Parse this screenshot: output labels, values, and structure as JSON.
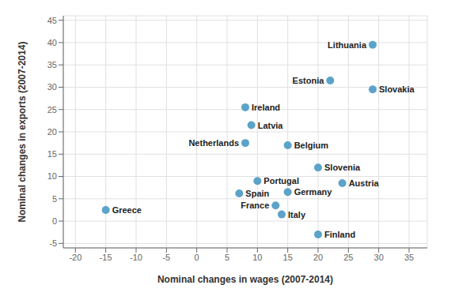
{
  "chart_data": {
    "type": "scatter",
    "xlabel": "Nominal changes in wages (2007-2014)",
    "ylabel": "Nominal changes in exports (2007-2014)",
    "annotations": [
      "Lithuania",
      "Estonia",
      "Slovakia",
      "Ireland",
      "Latvia",
      "Netherlands",
      "Belgium",
      "Slovenia",
      "Portugal",
      "Austria",
      "Spain",
      "Germany",
      "France",
      "Italy",
      "Finland",
      "Greece"
    ],
    "x": [
      29,
      22,
      29,
      8,
      9,
      8,
      15,
      20,
      10,
      24,
      7,
      15,
      13,
      14,
      20,
      -15
    ],
    "values": [
      39.5,
      31.5,
      29.5,
      25.5,
      21.5,
      17.5,
      17,
      12,
      9,
      8.5,
      6.2,
      6.5,
      3.5,
      1.5,
      -3,
      2.5
    ],
    "color": "#5BA3C9",
    "xlim": [
      -22,
      38
    ],
    "ylim": [
      -6,
      46
    ],
    "xticks": [
      -20,
      -15,
      -10,
      -5,
      0,
      5,
      10,
      15,
      20,
      25,
      30,
      35
    ],
    "yticks": [
      -5,
      0,
      5,
      10,
      15,
      20,
      25,
      30,
      35,
      40,
      45
    ],
    "grid": true
  }
}
